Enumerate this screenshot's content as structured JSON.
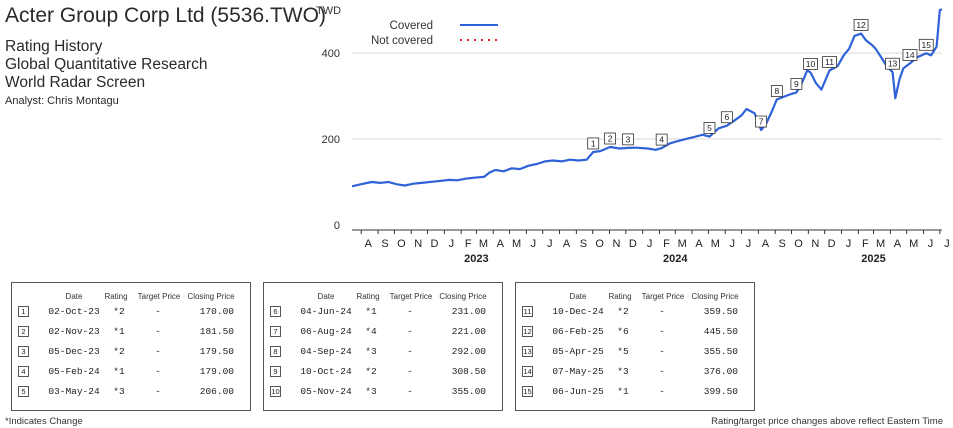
{
  "header": {
    "company": "Acter Group Corp Ltd (5536.TWO)",
    "lines": [
      "Rating History",
      "Global Quantitative Research",
      "World Radar Screen"
    ],
    "analyst": "Analyst: Chris Montagu"
  },
  "chart_data": {
    "type": "line",
    "ylabel": "TWD",
    "yticks": [
      0,
      200,
      400
    ],
    "ylim": [
      0,
      505
    ],
    "xlim": [
      "2022-07-15",
      "2025-07-05"
    ],
    "month_labels": [
      "A",
      "S",
      "O",
      "N",
      "D",
      "J",
      "F",
      "M",
      "A",
      "M",
      "J",
      "J",
      "A",
      "S",
      "O",
      "N",
      "D",
      "J",
      "F",
      "M",
      "A",
      "M",
      "J",
      "J",
      "A",
      "S",
      "O",
      "N",
      "D",
      "J",
      "F",
      "M",
      "A",
      "M",
      "J",
      "J"
    ],
    "month_dates": [
      "2022-08-01",
      "2022-09-01",
      "2022-10-01",
      "2022-11-01",
      "2022-12-01",
      "2023-01-01",
      "2023-02-01",
      "2023-03-01",
      "2023-04-01",
      "2023-05-01",
      "2023-06-01",
      "2023-07-01",
      "2023-08-01",
      "2023-09-01",
      "2023-10-01",
      "2023-11-01",
      "2023-12-01",
      "2024-01-01",
      "2024-02-01",
      "2024-03-01",
      "2024-04-01",
      "2024-05-01",
      "2024-06-01",
      "2024-07-01",
      "2024-08-01",
      "2024-09-01",
      "2024-10-01",
      "2024-11-01",
      "2024-12-01",
      "2025-01-01",
      "2025-02-01",
      "2025-03-01",
      "2025-04-01",
      "2025-05-01",
      "2025-06-01",
      "2025-07-01"
    ],
    "years": [
      {
        "label": "2023",
        "date": "2023-03-01"
      },
      {
        "label": "2024",
        "date": "2024-03-01"
      },
      {
        "label": "2025",
        "date": "2025-03-01"
      }
    ],
    "legend": [
      {
        "label": "Covered",
        "color": "#2f62d8",
        "style": "solid"
      },
      {
        "label": "Not covered",
        "color": "#e8232a",
        "style": "dotted"
      }
    ],
    "legend_position": "top-left",
    "grid": "horizontal",
    "series": [
      {
        "name": "Covered",
        "color": "#2f62d8",
        "points": [
          [
            "2022-07-15",
            90
          ],
          [
            "2022-08-01",
            95
          ],
          [
            "2022-08-20",
            100
          ],
          [
            "2022-09-05",
            98
          ],
          [
            "2022-09-20",
            100
          ],
          [
            "2022-10-05",
            95
          ],
          [
            "2022-10-20",
            92
          ],
          [
            "2022-11-05",
            96
          ],
          [
            "2022-11-20",
            98
          ],
          [
            "2022-12-05",
            100
          ],
          [
            "2022-12-20",
            102
          ],
          [
            "2023-01-10",
            105
          ],
          [
            "2023-01-25",
            104
          ],
          [
            "2023-02-10",
            108
          ],
          [
            "2023-02-25",
            110
          ],
          [
            "2023-03-15",
            112
          ],
          [
            "2023-03-25",
            122
          ],
          [
            "2023-04-05",
            128
          ],
          [
            "2023-04-20",
            125
          ],
          [
            "2023-05-05",
            132
          ],
          [
            "2023-05-20",
            130
          ],
          [
            "2023-06-05",
            138
          ],
          [
            "2023-06-20",
            142
          ],
          [
            "2023-07-05",
            148
          ],
          [
            "2023-07-20",
            150
          ],
          [
            "2023-08-05",
            148
          ],
          [
            "2023-08-20",
            152
          ],
          [
            "2023-09-05",
            150
          ],
          [
            "2023-09-20",
            152
          ],
          [
            "2023-10-02",
            170
          ],
          [
            "2023-10-15",
            172
          ],
          [
            "2023-11-02",
            181.5
          ],
          [
            "2023-11-20",
            178
          ],
          [
            "2023-12-05",
            179.5
          ],
          [
            "2023-12-20",
            180
          ],
          [
            "2024-01-10",
            178
          ],
          [
            "2024-01-25",
            175
          ],
          [
            "2024-02-05",
            179
          ],
          [
            "2024-02-20",
            190
          ],
          [
            "2024-03-05",
            195
          ],
          [
            "2024-03-20",
            200
          ],
          [
            "2024-04-05",
            205
          ],
          [
            "2024-04-20",
            210
          ],
          [
            "2024-05-03",
            206
          ],
          [
            "2024-05-20",
            225
          ],
          [
            "2024-06-04",
            231
          ],
          [
            "2024-06-20",
            245
          ],
          [
            "2024-07-01",
            255
          ],
          [
            "2024-07-10",
            270
          ],
          [
            "2024-07-25",
            260
          ],
          [
            "2024-08-06",
            221
          ],
          [
            "2024-08-15",
            235
          ],
          [
            "2024-08-25",
            262
          ],
          [
            "2024-09-04",
            292
          ],
          [
            "2024-09-20",
            300
          ],
          [
            "2024-10-01",
            305
          ],
          [
            "2024-10-10",
            308.5
          ],
          [
            "2024-10-20",
            330
          ],
          [
            "2024-10-30",
            360
          ],
          [
            "2024-11-05",
            355
          ],
          [
            "2024-11-15",
            330
          ],
          [
            "2024-11-25",
            315
          ],
          [
            "2024-12-10",
            359.5
          ],
          [
            "2024-12-25",
            370
          ],
          [
            "2025-01-05",
            395
          ],
          [
            "2025-01-15",
            410
          ],
          [
            "2025-01-25",
            440
          ],
          [
            "2025-02-06",
            445.5
          ],
          [
            "2025-02-15",
            430
          ],
          [
            "2025-02-25",
            420
          ],
          [
            "2025-03-05",
            410
          ],
          [
            "2025-03-15",
            390
          ],
          [
            "2025-03-25",
            370
          ],
          [
            "2025-04-05",
            355.5
          ],
          [
            "2025-04-10",
            295
          ],
          [
            "2025-04-18",
            340
          ],
          [
            "2025-04-25",
            365
          ],
          [
            "2025-05-07",
            376
          ],
          [
            "2025-05-20",
            390
          ],
          [
            "2025-06-06",
            399.5
          ],
          [
            "2025-06-15",
            395
          ],
          [
            "2025-06-25",
            415
          ],
          [
            "2025-07-01",
            500
          ],
          [
            "2025-07-05",
            502
          ]
        ]
      }
    ],
    "rating_markers": [
      {
        "n": "1",
        "date": "2023-10-02",
        "price": 170.0
      },
      {
        "n": "2",
        "date": "2023-11-02",
        "price": 181.5
      },
      {
        "n": "3",
        "date": "2023-12-05",
        "price": 179.5
      },
      {
        "n": "4",
        "date": "2024-02-05",
        "price": 179.0
      },
      {
        "n": "5",
        "date": "2024-05-03",
        "price": 206.0
      },
      {
        "n": "6",
        "date": "2024-06-04",
        "price": 231.0
      },
      {
        "n": "7",
        "date": "2024-08-06",
        "price": 221.0
      },
      {
        "n": "8",
        "date": "2024-09-04",
        "price": 292.0
      },
      {
        "n": "9",
        "date": "2024-10-10",
        "price": 308.5
      },
      {
        "n": "10",
        "date": "2024-11-05",
        "price": 355.0
      },
      {
        "n": "11",
        "date": "2024-12-10",
        "price": 359.5
      },
      {
        "n": "12",
        "date": "2025-02-06",
        "price": 445.5
      },
      {
        "n": "13",
        "date": "2025-04-05",
        "price": 355.5
      },
      {
        "n": "14",
        "date": "2025-05-07",
        "price": 376.0
      },
      {
        "n": "15",
        "date": "2025-06-06",
        "price": 399.5
      }
    ]
  },
  "table": {
    "headers": [
      "Date",
      "Rating",
      "Target Price",
      "Closing Price"
    ],
    "rows": [
      {
        "n": "1",
        "date": "02-Oct-23",
        "rating": "*2",
        "target": "-",
        "close": "170.00"
      },
      {
        "n": "2",
        "date": "02-Nov-23",
        "rating": "*1",
        "target": "-",
        "close": "181.50"
      },
      {
        "n": "3",
        "date": "05-Dec-23",
        "rating": "*2",
        "target": "-",
        "close": "179.50"
      },
      {
        "n": "4",
        "date": "05-Feb-24",
        "rating": "*1",
        "target": "-",
        "close": "179.00"
      },
      {
        "n": "5",
        "date": "03-May-24",
        "rating": "*3",
        "target": "-",
        "close": "206.00"
      },
      {
        "n": "6",
        "date": "04-Jun-24",
        "rating": "*1",
        "target": "-",
        "close": "231.00"
      },
      {
        "n": "7",
        "date": "06-Aug-24",
        "rating": "*4",
        "target": "-",
        "close": "221.00"
      },
      {
        "n": "8",
        "date": "04-Sep-24",
        "rating": "*3",
        "target": "-",
        "close": "292.00"
      },
      {
        "n": "9",
        "date": "10-Oct-24",
        "rating": "*2",
        "target": "-",
        "close": "308.50"
      },
      {
        "n": "10",
        "date": "05-Nov-24",
        "rating": "*3",
        "target": "-",
        "close": "355.00"
      },
      {
        "n": "11",
        "date": "10-Dec-24",
        "rating": "*2",
        "target": "-",
        "close": "359.50"
      },
      {
        "n": "12",
        "date": "06-Feb-25",
        "rating": "*6",
        "target": "-",
        "close": "445.50"
      },
      {
        "n": "13",
        "date": "05-Apr-25",
        "rating": "*5",
        "target": "-",
        "close": "355.50"
      },
      {
        "n": "14",
        "date": "07-May-25",
        "rating": "*3",
        "target": "-",
        "close": "376.00"
      },
      {
        "n": "15",
        "date": "06-Jun-25",
        "rating": "*1",
        "target": "-",
        "close": "399.50"
      }
    ]
  },
  "footer": {
    "left": "*Indicates Change",
    "right": "Rating/target price changes above reflect Eastern Time"
  }
}
